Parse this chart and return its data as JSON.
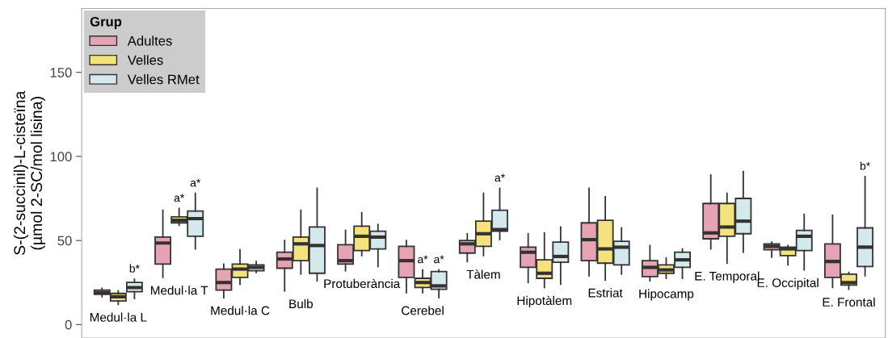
{
  "chart_data": {
    "type": "box",
    "ylabel": "S-(2-succinil)-L-cisteïna\n(µmol 2-SC/mol lisina)",
    "legend_title": "Grup",
    "categories": [
      "Medul·la L",
      "Medul·la T",
      "Medul·la C",
      "Bulb",
      "Protuberància",
      "Cerebel",
      "Tàlem",
      "Hipotàlem",
      "Estriat",
      "Hipocamp",
      "E. Temporal",
      "E. Occipital",
      "E. Frontal"
    ],
    "series": [
      {
        "name": "Adultes",
        "color": "#e6a3b3",
        "boxes": [
          {
            "low": 16.5,
            "q1": 18,
            "median": 19,
            "q3": 20.5,
            "high": 21.5
          },
          {
            "low": 28,
            "q1": 36,
            "median": 48.5,
            "q3": 52,
            "high": 68
          },
          {
            "low": 16,
            "q1": 20.5,
            "median": 25,
            "q3": 33,
            "high": 36
          },
          {
            "low": 20,
            "q1": 33.5,
            "median": 39,
            "q3": 43,
            "high": 50
          },
          {
            "low": 32,
            "q1": 36,
            "median": 38,
            "q3": 47.5,
            "high": 56
          },
          {
            "low": 19,
            "q1": 28,
            "median": 38,
            "q3": 46.5,
            "high": 50
          },
          {
            "low": 37.5,
            "q1": 42.5,
            "median": 48,
            "q3": 50,
            "high": 54
          },
          {
            "low": 25,
            "q1": 34,
            "median": 43,
            "q3": 46,
            "high": 54
          },
          {
            "low": 29,
            "q1": 38,
            "median": 50.5,
            "q3": 60.5,
            "high": 81
          },
          {
            "low": 26,
            "q1": 28.5,
            "median": 34,
            "q3": 38,
            "high": 47
          },
          {
            "low": 45,
            "q1": 51,
            "median": 54.5,
            "q3": 72,
            "high": 89
          },
          {
            "low": 40,
            "q1": 44.5,
            "median": 46.5,
            "q3": 48,
            "high": 49
          },
          {
            "low": 22,
            "q1": 28,
            "median": 37.5,
            "q3": 48,
            "high": 65
          }
        ]
      },
      {
        "name": "Velles",
        "color": "#f4e27c",
        "boxes": [
          {
            "low": 12,
            "q1": 14,
            "median": 16.5,
            "q3": 18.5,
            "high": 20
          },
          {
            "low": 59,
            "q1": 60.5,
            "median": 62,
            "q3": 64,
            "high": 69
          },
          {
            "low": 24,
            "q1": 28,
            "median": 33,
            "q3": 36,
            "high": 44.5
          },
          {
            "low": 30,
            "q1": 38,
            "median": 48,
            "q3": 52,
            "high": 68
          },
          {
            "low": 41,
            "q1": 44,
            "median": 52.5,
            "q3": 58.5,
            "high": 66.5
          },
          {
            "low": 19,
            "q1": 22,
            "median": 25,
            "q3": 27.5,
            "high": 32.5
          },
          {
            "low": 41,
            "q1": 46.5,
            "median": 54,
            "q3": 61.5,
            "high": 78
          },
          {
            "low": 22,
            "q1": 27.5,
            "median": 30.5,
            "q3": 38.5,
            "high": 54.5
          },
          {
            "low": 26.5,
            "q1": 36.5,
            "median": 45,
            "q3": 62,
            "high": 76
          },
          {
            "low": 27.5,
            "q1": 30.5,
            "median": 32.5,
            "q3": 35.5,
            "high": 39.5
          },
          {
            "low": 36.5,
            "q1": 52.5,
            "median": 58,
            "q3": 72,
            "high": 78
          },
          {
            "low": 35.5,
            "q1": 41,
            "median": 45,
            "q3": 46,
            "high": 47
          },
          {
            "low": 21,
            "q1": 23.5,
            "median": 25,
            "q3": 30,
            "high": 31
          }
        ],
        "value_labels": [
          null,
          "a*",
          null,
          null,
          null,
          "a*",
          null,
          null,
          null,
          null,
          null,
          null,
          null
        ]
      },
      {
        "name": "Velles RMet",
        "color": "#d4e9ec",
        "boxes": [
          {
            "low": 15.5,
            "q1": 19.5,
            "median": 22,
            "q3": 25,
            "high": 27
          },
          {
            "low": 45,
            "q1": 52.5,
            "median": 63,
            "q3": 67.5,
            "high": 78
          },
          {
            "low": 31,
            "q1": 32,
            "median": 34,
            "q3": 35.5,
            "high": 37.5
          },
          {
            "low": 26,
            "q1": 30.5,
            "median": 47,
            "q3": 58,
            "high": 81
          },
          {
            "low": 34.5,
            "q1": 45,
            "median": 52,
            "q3": 55.5,
            "high": 59.5
          },
          {
            "low": 16,
            "q1": 21,
            "median": 23,
            "q3": 31.5,
            "high": 32.5
          },
          {
            "low": 50.5,
            "q1": 55.5,
            "median": 56.5,
            "q3": 68,
            "high": 81
          },
          {
            "low": 24,
            "q1": 37,
            "median": 40.5,
            "q3": 49,
            "high": 58
          },
          {
            "low": 30,
            "q1": 35.5,
            "median": 46,
            "q3": 49.5,
            "high": 57.5
          },
          {
            "low": 27.5,
            "q1": 34,
            "median": 38.5,
            "q3": 43,
            "high": 45
          },
          {
            "low": 43,
            "q1": 54,
            "median": 61.5,
            "q3": 75,
            "high": 91
          },
          {
            "low": 32.5,
            "q1": 44,
            "median": 52.5,
            "q3": 56,
            "high": 65.5
          },
          {
            "low": 29,
            "q1": 34.5,
            "median": 46,
            "q3": 57.5,
            "high": 88
          }
        ],
        "value_labels": [
          "b*",
          "a*",
          null,
          null,
          null,
          "a*",
          "a*",
          null,
          null,
          null,
          null,
          null,
          "b*"
        ]
      }
    ],
    "ylim": [
      -8,
      188
    ],
    "yticks": [
      0,
      50,
      100,
      150
    ],
    "tick_labels": "y",
    "grid": false,
    "legend": "top left"
  }
}
